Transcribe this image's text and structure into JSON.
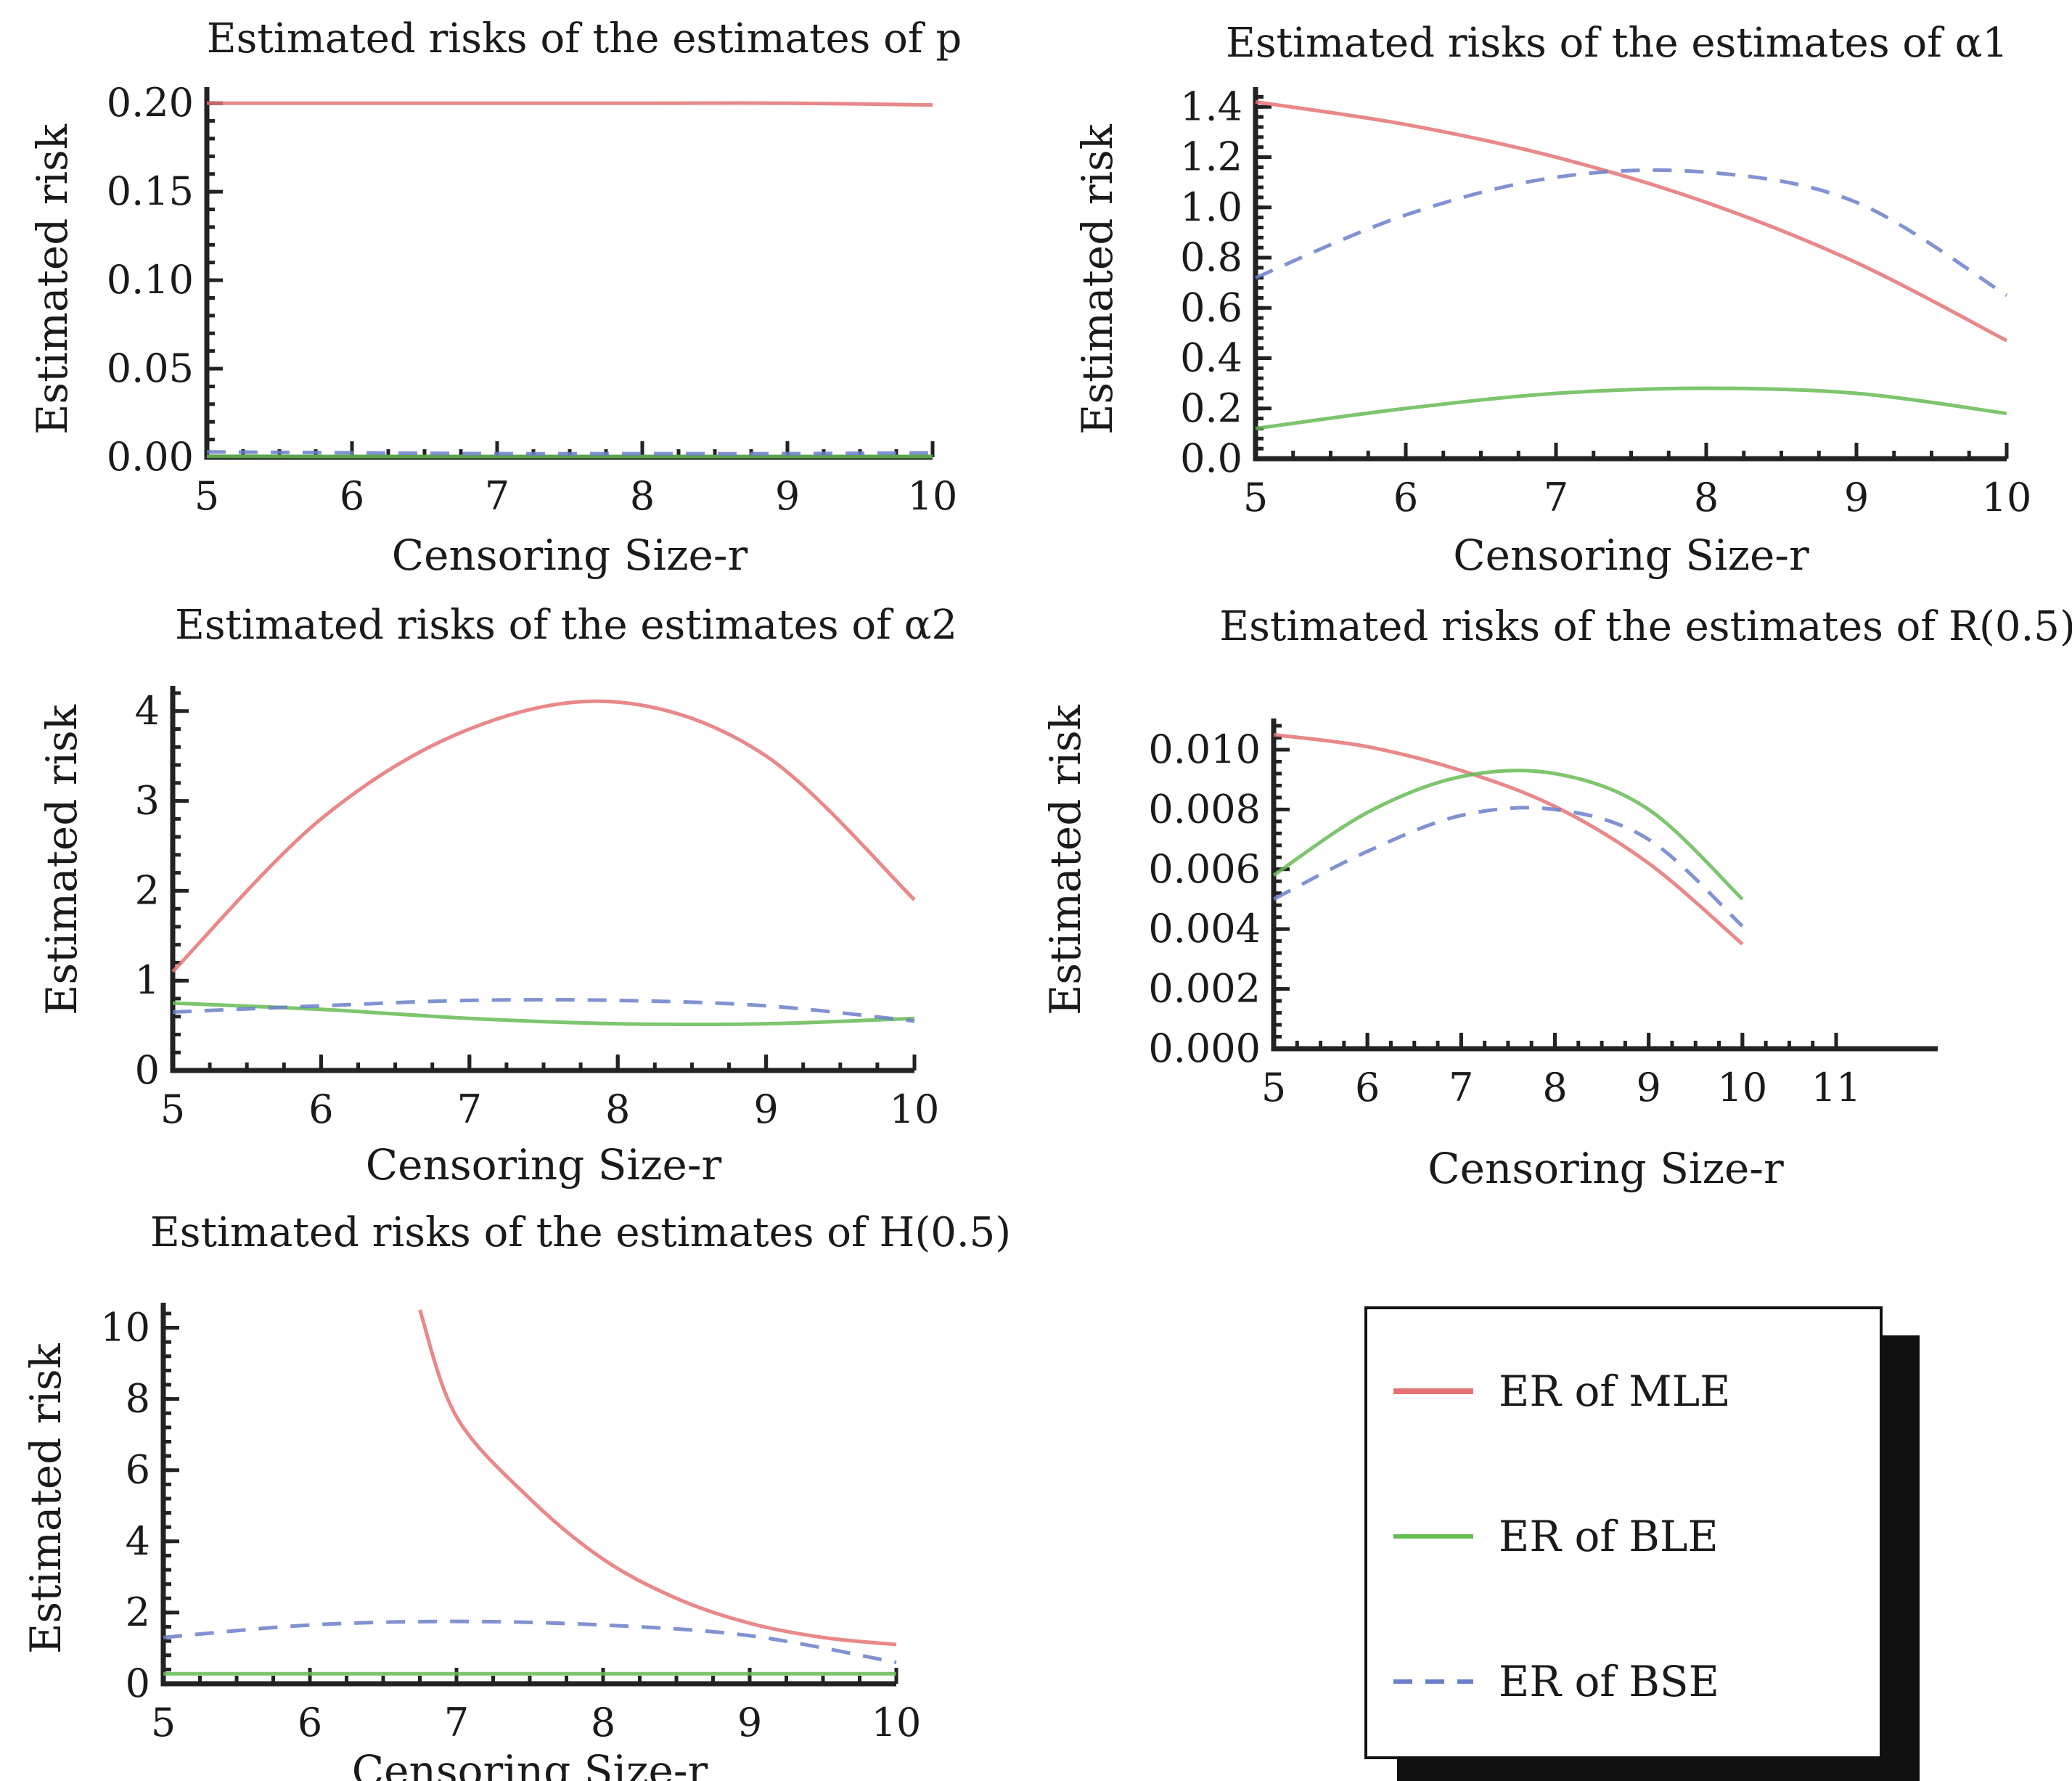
{
  "legend": {
    "items": [
      {
        "label": "ER of MLE",
        "color": "#e57373",
        "dash": "solid"
      },
      {
        "label": "ER of BLE",
        "color": "#66bb55",
        "dash": "solid"
      },
      {
        "label": "ER of BSE",
        "color": "#6a7fc9",
        "dash": "dashed"
      }
    ]
  },
  "chart_data": [
    {
      "type": "line",
      "title": "Estimated risks of the estimates of p",
      "xlabel": "Censoring Size-r",
      "ylabel": "Estimated risk",
      "xlim": [
        5,
        10
      ],
      "ylim": [
        0,
        0.205
      ],
      "xticks": [
        5,
        6,
        7,
        8,
        9,
        10
      ],
      "xtick_labels": [
        "5",
        "6",
        "7",
        "8",
        "9",
        "10"
      ],
      "yticks": [
        0,
        0.05,
        0.1,
        0.15,
        0.2
      ],
      "ytick_labels": [
        "0.00",
        "0.05",
        "0.10",
        "0.15",
        "0.20"
      ],
      "series": [
        {
          "name": "ER of MLE",
          "x": [
            5,
            6,
            7,
            8,
            9,
            10
          ],
          "values": [
            0.2,
            0.2,
            0.2,
            0.2,
            0.2,
            0.199
          ]
        },
        {
          "name": "ER of BLE",
          "x": [
            5,
            6,
            7,
            8,
            9,
            10
          ],
          "values": [
            0.0005,
            0.0004,
            0.0004,
            0.0004,
            0.0004,
            0.0004
          ]
        },
        {
          "name": "ER of BSE",
          "x": [
            5,
            6,
            7,
            8,
            9,
            10
          ],
          "values": [
            0.003,
            0.0025,
            0.002,
            0.002,
            0.002,
            0.0025
          ]
        }
      ]
    },
    {
      "type": "line",
      "title": "Estimated risks of the estimates of α1",
      "xlabel": "Censoring Size-r",
      "ylabel": "Estimated risk",
      "xlim": [
        5,
        10
      ],
      "ylim": [
        0,
        1.45
      ],
      "xticks": [
        5,
        6,
        7,
        8,
        9,
        10
      ],
      "xtick_labels": [
        "5",
        "6",
        "7",
        "8",
        "9",
        "10"
      ],
      "yticks": [
        0,
        0.2,
        0.4,
        0.6,
        0.8,
        1.0,
        1.2,
        1.4
      ],
      "ytick_labels": [
        "0.0",
        "0.2",
        "0.4",
        "0.6",
        "0.8",
        "1.0",
        "1.2",
        "1.4"
      ],
      "series": [
        {
          "name": "ER of MLE",
          "x": [
            5,
            6,
            7,
            8,
            9,
            10
          ],
          "values": [
            1.42,
            1.33,
            1.2,
            1.02,
            0.78,
            0.47
          ]
        },
        {
          "name": "ER of BLE",
          "x": [
            5,
            6,
            7,
            8,
            9,
            10
          ],
          "values": [
            0.12,
            0.2,
            0.26,
            0.28,
            0.26,
            0.18
          ]
        },
        {
          "name": "ER of BSE",
          "x": [
            5,
            6,
            7,
            8,
            9,
            10
          ],
          "values": [
            0.72,
            0.97,
            1.12,
            1.14,
            1.02,
            0.65
          ]
        }
      ]
    },
    {
      "type": "line",
      "title": "Estimated risks of the estimates of α2",
      "xlabel": "Censoring Size-r",
      "ylabel": "Estimated risk",
      "xlim": [
        5,
        10
      ],
      "ylim": [
        0,
        4.2
      ],
      "xticks": [
        5,
        6,
        7,
        8,
        9,
        10
      ],
      "xtick_labels": [
        "5",
        "6",
        "7",
        "8",
        "9",
        "10"
      ],
      "yticks": [
        0,
        1,
        2,
        3,
        4
      ],
      "ytick_labels": [
        "0",
        "1",
        "2",
        "3",
        "4"
      ],
      "series": [
        {
          "name": "ER of MLE",
          "x": [
            5,
            6,
            7,
            8,
            9,
            10
          ],
          "values": [
            1.1,
            2.8,
            3.8,
            4.1,
            3.5,
            1.9
          ]
        },
        {
          "name": "ER of BLE",
          "x": [
            5,
            6,
            7,
            8,
            9,
            10
          ],
          "values": [
            0.75,
            0.68,
            0.58,
            0.52,
            0.52,
            0.58
          ]
        },
        {
          "name": "ER of BSE",
          "x": [
            5,
            6,
            7,
            8,
            9,
            10
          ],
          "values": [
            0.65,
            0.72,
            0.78,
            0.78,
            0.72,
            0.55
          ]
        }
      ]
    },
    {
      "type": "line",
      "title": "Estimated risks of the estimates of R(0.5)",
      "xlabel": "Censoring Size-r",
      "ylabel": "Estimated risk",
      "xlim": [
        5,
        11
      ],
      "ylim": [
        0,
        0.0108
      ],
      "xticks": [
        5,
        6,
        7,
        8,
        9,
        10,
        11
      ],
      "xtick_labels": [
        "5",
        "6",
        "7",
        "8",
        "9",
        "10",
        "11"
      ],
      "yticks": [
        0,
        0.002,
        0.004,
        0.006,
        0.008,
        0.01
      ],
      "ytick_labels": [
        "0.000",
        "0.002",
        "0.004",
        "0.006",
        "0.008",
        "0.010"
      ],
      "series": [
        {
          "name": "ER of MLE",
          "x": [
            5,
            6,
            7,
            8,
            9,
            10
          ],
          "values": [
            0.0105,
            0.0101,
            0.0093,
            0.0081,
            0.0062,
            0.0035
          ]
        },
        {
          "name": "ER of BLE",
          "x": [
            5,
            6,
            7,
            8,
            9,
            10
          ],
          "values": [
            0.0058,
            0.0079,
            0.0091,
            0.0092,
            0.008,
            0.005
          ]
        },
        {
          "name": "ER of BSE",
          "x": [
            5,
            6,
            7,
            8,
            9,
            10
          ],
          "values": [
            0.005,
            0.0066,
            0.0078,
            0.008,
            0.007,
            0.0041
          ]
        }
      ]
    },
    {
      "type": "line",
      "title": "Estimated risks of the estimates of H(0.5)",
      "xlabel": "Censoring Size-r",
      "ylabel": "Estimated risk",
      "xlim": [
        5,
        10
      ],
      "ylim": [
        0,
        10.5
      ],
      "xticks": [
        5,
        6,
        7,
        8,
        9,
        10
      ],
      "xtick_labels": [
        "5",
        "6",
        "7",
        "8",
        "9",
        "10"
      ],
      "yticks": [
        0,
        2,
        4,
        6,
        8,
        10
      ],
      "ytick_labels": [
        "0",
        "2",
        "4",
        "6",
        "8",
        "10"
      ],
      "series": [
        {
          "name": "ER of MLE",
          "x": [
            6.75,
            7,
            7.5,
            8,
            8.5,
            9,
            9.5,
            10
          ],
          "values": [
            10.5,
            7.5,
            5.2,
            3.5,
            2.4,
            1.7,
            1.3,
            1.1
          ]
        },
        {
          "name": "ER of BLE",
          "x": [
            5,
            6,
            7,
            8,
            9,
            10
          ],
          "values": [
            0.28,
            0.28,
            0.28,
            0.28,
            0.28,
            0.28
          ]
        },
        {
          "name": "ER of BSE",
          "x": [
            5,
            6,
            7,
            8,
            9,
            10
          ],
          "values": [
            1.3,
            1.65,
            1.75,
            1.65,
            1.35,
            0.6
          ]
        }
      ]
    }
  ]
}
